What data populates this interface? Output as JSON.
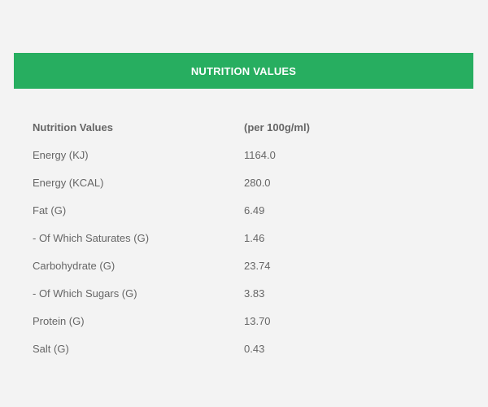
{
  "header": {
    "title": "NUTRITION VALUES"
  },
  "table": {
    "columns": [
      "Nutrition Values",
      "(per 100g/ml)"
    ],
    "rows": [
      {
        "name": "Energy (KJ)",
        "value": "1164.0"
      },
      {
        "name": "Energy (KCAL)",
        "value": "280.0"
      },
      {
        "name": "Fat (G)",
        "value": "6.49"
      },
      {
        "name": "- Of Which Saturates (G)",
        "value": "1.46"
      },
      {
        "name": "Carbohydrate (G)",
        "value": "23.74"
      },
      {
        "name": "- Of Which Sugars (G)",
        "value": "3.83"
      },
      {
        "name": "Protein (G)",
        "value": "13.70"
      },
      {
        "name": "Salt (G)",
        "value": "0.43"
      }
    ]
  },
  "colors": {
    "header_bg": "#27ae60",
    "page_bg": "#f3f3f3",
    "text": "#666666"
  }
}
